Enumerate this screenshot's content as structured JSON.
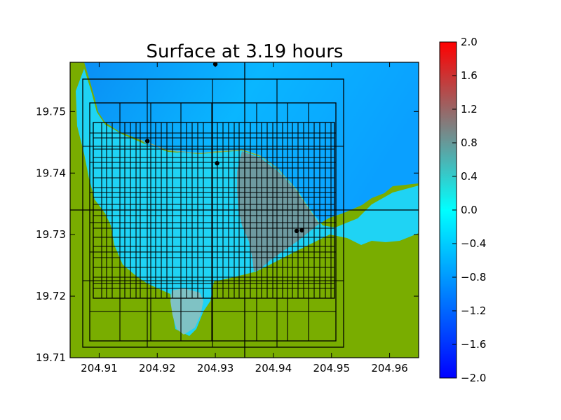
{
  "chart_data": {
    "type": "heatmap",
    "title": "Surface at 3.19 hours",
    "xlabel": "",
    "ylabel": "",
    "xlim": [
      204.905,
      204.965
    ],
    "ylim": [
      19.71,
      19.758
    ],
    "x_ticks": [
      "204.91",
      "204.92",
      "204.93",
      "204.94",
      "204.95",
      "204.96"
    ],
    "x_tick_values": [
      204.91,
      204.92,
      204.93,
      204.94,
      204.95,
      204.96
    ],
    "y_ticks": [
      "19.71",
      "19.72",
      "19.73",
      "19.74",
      "19.75"
    ],
    "y_tick_values": [
      19.71,
      19.72,
      19.73,
      19.74,
      19.75
    ],
    "colorbar": {
      "min": -2.0,
      "max": 2.0,
      "ticks": [
        "2.0",
        "1.6",
        "1.2",
        "0.8",
        "0.4",
        "0.0",
        "−0.4",
        "−0.8",
        "−1.2",
        "−1.6",
        "−2.0"
      ],
      "tick_values": [
        2.0,
        1.6,
        1.2,
        0.8,
        0.4,
        0.0,
        -0.4,
        -0.8,
        -1.2,
        -1.6,
        -2.0
      ],
      "colors": [
        "#0000ff",
        "#00ffff",
        "#ff0000"
      ]
    },
    "gauges": [
      {
        "x": 204.93,
        "y": 19.7577
      },
      {
        "x": 204.9183,
        "y": 19.7452
      },
      {
        "x": 204.9303,
        "y": 19.7416
      },
      {
        "x": 204.944,
        "y": 19.7306
      },
      {
        "x": 204.9449,
        "y": 19.7307
      }
    ],
    "amr_patches": [
      {
        "x": [
          204.9065,
          204.9652
        ],
        "y": [
          19.71,
          19.7337
        ]
      },
      {
        "x": [
          204.9065,
          204.9652
        ],
        "y": [
          19.7337,
          19.758
        ]
      },
      {
        "x": [
          204.908,
          204.952
        ],
        "y": [
          19.7118,
          19.7554
        ]
      },
      {
        "x": [
          204.909,
          204.9513
        ],
        "y": [
          19.713,
          19.7517
        ]
      },
      {
        "x": [
          204.909,
          204.9513
        ],
        "y": [
          19.7195,
          19.7485
        ]
      }
    ],
    "colors": {
      "land": "#79ad00",
      "deep_water": "#07a6ff",
      "shallow_water": "#1fd3f4",
      "inundated": "#6e9aa0",
      "grid_lines": "#000000"
    }
  }
}
